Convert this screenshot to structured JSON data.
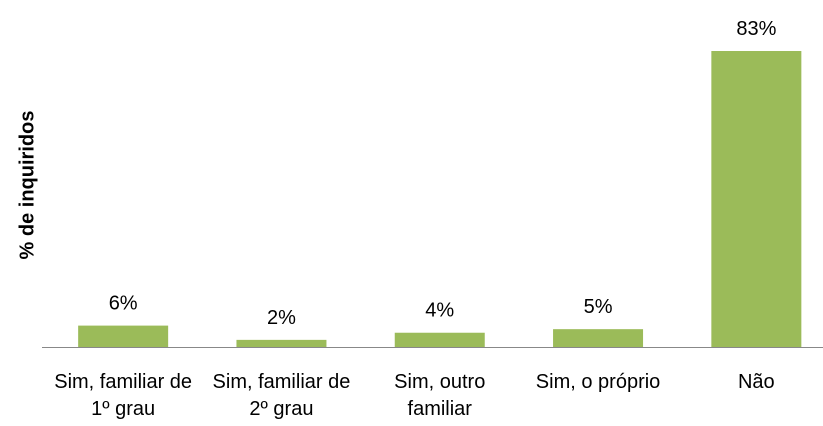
{
  "chart_data": {
    "type": "bar",
    "y_label": "% de  inquiridos",
    "categories": [
      "Sim, familiar de 1º grau",
      "Sim, familiar de 2º grau",
      "Sim, outro familiar",
      "Sim, o próprio",
      "Não"
    ],
    "values": [
      6,
      2,
      4,
      5,
      83
    ],
    "value_labels": [
      "6%",
      "2%",
      "4%",
      "5%",
      "83%"
    ],
    "color": "#9bbb59"
  }
}
